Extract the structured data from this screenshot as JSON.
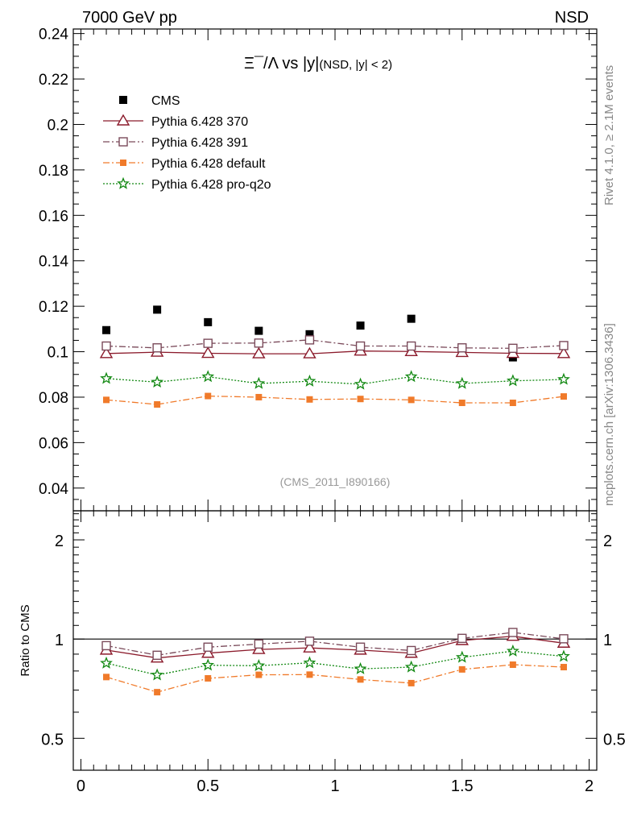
{
  "header": {
    "left": "7000 GeV pp",
    "right": "NSD"
  },
  "side_labels": {
    "rivet": "Rivet 4.1.0, ≥ 2.1M events",
    "mcplots": "mcplots.cern.ch [arXiv:1306.3436]"
  },
  "watermark": "(CMS_2011_I890166)",
  "colors": {
    "cms": "#000000",
    "p370": "#8b1a2b",
    "p391": "#7a4a5a",
    "pdefault": "#f07a2a",
    "pq2o": "#118811"
  },
  "chart_data": [
    {
      "type": "scatter",
      "panel": "main",
      "title_sym": "Ξ¯/Λ vs |y|",
      "title_sub": "(NSD, |y| < 2)",
      "xlabel": "",
      "ylabel": "",
      "xlim": [
        -0.03,
        2.03
      ],
      "ylim": [
        0.03,
        0.242
      ],
      "yticks": [
        0.04,
        0.06,
        0.08,
        0.1,
        0.12,
        0.14,
        0.16,
        0.18,
        0.2,
        0.22,
        0.24
      ],
      "ytick_labels": [
        "0.04",
        "0.06",
        "0.08",
        "0.1",
        "0.12",
        "0.14",
        "0.16",
        "0.18",
        "0.2",
        "0.22",
        "0.24"
      ],
      "x": [
        0.1,
        0.3,
        0.5,
        0.7,
        0.9,
        1.1,
        1.3,
        1.5,
        1.7,
        1.9
      ],
      "legend": [
        "CMS",
        "Pythia 6.428 370",
        "Pythia 6.428 391",
        "Pythia 6.428 default",
        "Pythia 6.428 pro-q2o"
      ],
      "series": [
        {
          "name": "CMS",
          "key": "cms",
          "marker": "filled-square",
          "line": "none",
          "values": [
            0.1095,
            0.1185,
            0.113,
            0.1092,
            0.1077,
            0.1115,
            0.1145,
            0.1015,
            0.0975,
            0.1025
          ]
        },
        {
          "name": "Pythia 6.428 370",
          "key": "p370",
          "marker": "open-triangle",
          "line": "solid",
          "values": [
            0.0992,
            0.0998,
            0.0993,
            0.0991,
            0.0991,
            0.1003,
            0.1001,
            0.0997,
            0.0993,
            0.0992
          ]
        },
        {
          "name": "Pythia 6.428 391",
          "key": "p391",
          "marker": "open-square",
          "line": "dashdot",
          "values": [
            0.1025,
            0.1017,
            0.1037,
            0.1038,
            0.1052,
            0.1025,
            0.1025,
            0.1017,
            0.1015,
            0.1027
          ]
        },
        {
          "name": "Pythia 6.428 default",
          "key": "pdefault",
          "marker": "small-filled-square",
          "line": "dashdot",
          "values": [
            0.0788,
            0.0768,
            0.0805,
            0.08,
            0.079,
            0.0792,
            0.0788,
            0.0775,
            0.0775,
            0.0803
          ]
        },
        {
          "name": "Pythia 6.428 pro-q2o",
          "key": "pq2o",
          "marker": "open-star",
          "line": "dotted",
          "values": [
            0.0882,
            0.0866,
            0.089,
            0.086,
            0.087,
            0.0857,
            0.089,
            0.086,
            0.0872,
            0.0878
          ]
        }
      ]
    },
    {
      "type": "line",
      "panel": "ratio",
      "ylabel": "Ratio to CMS",
      "xlim": [
        -0.03,
        2.03
      ],
      "ylim": [
        0.4,
        2.45
      ],
      "yscale": "log",
      "reference": 1,
      "yticks": [
        0.5,
        1,
        2
      ],
      "ytick_labels": [
        "0.5",
        "1",
        "2"
      ],
      "xticks": [
        0,
        0.5,
        1,
        1.5,
        2
      ],
      "xtick_labels": [
        "0",
        "0.5",
        "1",
        "1.5",
        "2"
      ],
      "x": [
        0.1,
        0.3,
        0.5,
        0.7,
        0.9,
        1.1,
        1.3,
        1.5,
        1.7,
        1.9
      ],
      "series": [
        {
          "name": "Pythia 6.428 370",
          "key": "p370",
          "marker": "open-triangle",
          "line": "solid",
          "values": [
            0.926,
            0.876,
            0.906,
            0.93,
            0.94,
            0.926,
            0.906,
            0.99,
            1.02,
            0.972
          ]
        },
        {
          "name": "Pythia 6.428 391",
          "key": "p391",
          "marker": "open-square",
          "line": "dashdot",
          "values": [
            0.955,
            0.893,
            0.945,
            0.966,
            0.985,
            0.945,
            0.923,
            1.005,
            1.047,
            1.002
          ]
        },
        {
          "name": "Pythia 6.428 default",
          "key": "pdefault",
          "marker": "small-filled-square",
          "line": "dashdot",
          "values": [
            0.767,
            0.69,
            0.76,
            0.779,
            0.78,
            0.754,
            0.735,
            0.809,
            0.836,
            0.822
          ]
        },
        {
          "name": "Pythia 6.428 pro-q2o",
          "key": "pq2o",
          "marker": "open-star",
          "line": "dotted",
          "values": [
            0.845,
            0.778,
            0.833,
            0.83,
            0.847,
            0.812,
            0.822,
            0.88,
            0.919,
            0.886
          ]
        }
      ]
    }
  ]
}
